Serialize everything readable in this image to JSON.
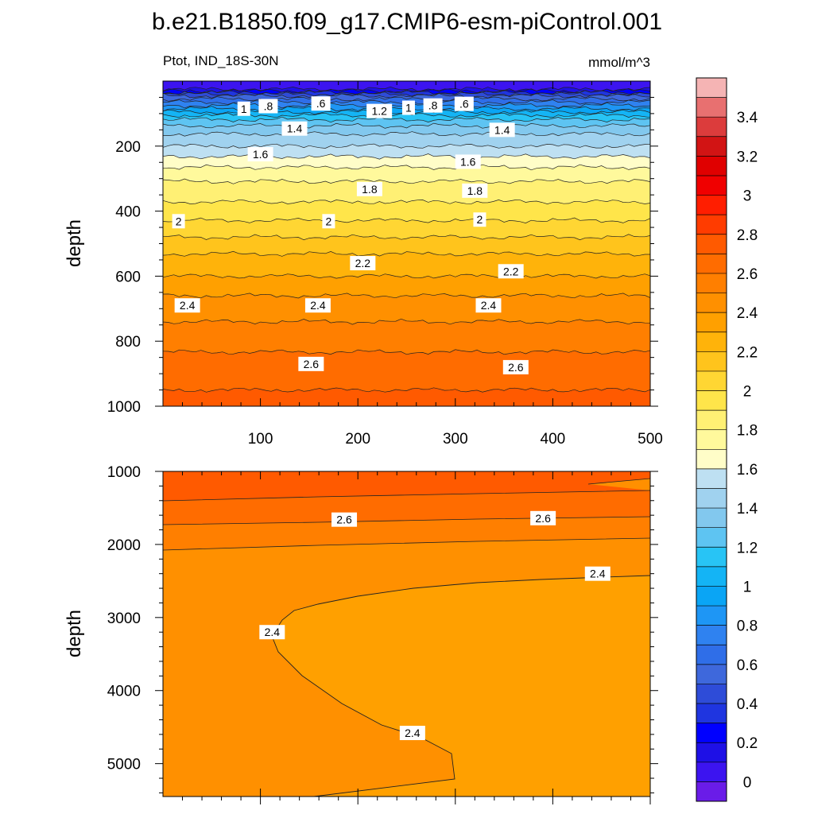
{
  "figure": {
    "title": "b.e21.B1850.f09_g17.CMIP6-esm-piControl.001",
    "variable_label": "Ptot, IND_18S-30N",
    "units_label": "mmol/m^3"
  },
  "chart_data": [
    {
      "type": "heatmap",
      "panel": "upper",
      "ylabel": "depth",
      "xlabel": "",
      "xlim": [
        0,
        500
      ],
      "ylim": [
        1000,
        0
      ],
      "x_ticks": [
        "100",
        "200",
        "300",
        "400",
        "500"
      ],
      "y_ticks": [
        "200",
        "400",
        "600",
        "800",
        "1000"
      ],
      "profile_depth": [
        0,
        25,
        45,
        65,
        85,
        105,
        125,
        150,
        175,
        200,
        225,
        250,
        280,
        320,
        360,
        400,
        440,
        480,
        520,
        560,
        600,
        640,
        680,
        720,
        760,
        800,
        850,
        900,
        950,
        1000
      ],
      "profile_value": [
        0.05,
        0.1,
        0.5,
        0.7,
        0.9,
        1.1,
        1.25,
        1.35,
        1.45,
        1.5,
        1.58,
        1.65,
        1.75,
        1.82,
        1.88,
        1.95,
        2.02,
        2.1,
        2.18,
        2.25,
        2.3,
        2.37,
        2.43,
        2.48,
        2.52,
        2.56,
        2.62,
        2.66,
        2.7,
        2.75
      ],
      "contour_labels": [
        {
          "text": "1",
          "x": 83,
          "y": 85
        },
        {
          "text": ".8",
          "x": 108,
          "y": 77
        },
        {
          "text": ".6",
          "x": 162,
          "y": 69
        },
        {
          "text": "1.2",
          "x": 222,
          "y": 92
        },
        {
          "text": "1",
          "x": 252,
          "y": 82
        },
        {
          "text": ".8",
          "x": 277,
          "y": 75
        },
        {
          "text": ".6",
          "x": 309,
          "y": 70
        },
        {
          "text": "1.4",
          "x": 135,
          "y": 146
        },
        {
          "text": "1.4",
          "x": 348,
          "y": 150
        },
        {
          "text": "1.6",
          "x": 100,
          "y": 225
        },
        {
          "text": "1.6",
          "x": 313,
          "y": 248
        },
        {
          "text": "1.8",
          "x": 212,
          "y": 332
        },
        {
          "text": "1.8",
          "x": 320,
          "y": 337
        },
        {
          "text": "2",
          "x": 16,
          "y": 431
        },
        {
          "text": "2",
          "x": 170,
          "y": 431
        },
        {
          "text": "2",
          "x": 325,
          "y": 426
        },
        {
          "text": "2.2",
          "x": 205,
          "y": 560
        },
        {
          "text": "2.2",
          "x": 357,
          "y": 585
        },
        {
          "text": "2.4",
          "x": 25,
          "y": 690
        },
        {
          "text": "2.4",
          "x": 159,
          "y": 690
        },
        {
          "text": "2.4",
          "x": 334,
          "y": 690
        },
        {
          "text": "2.6",
          "x": 152,
          "y": 870
        },
        {
          "text": "2.6",
          "x": 362,
          "y": 880
        }
      ]
    },
    {
      "type": "heatmap",
      "panel": "lower",
      "ylabel": "depth",
      "xlabel": "",
      "xlim": [
        0,
        500
      ],
      "ylim": [
        5450,
        1000
      ],
      "x_ticks": [],
      "y_ticks": [
        "1000",
        "2000",
        "3000",
        "4000",
        "5000"
      ],
      "contour_labels": [
        {
          "text": "2.6",
          "x": 186,
          "y": 1660
        },
        {
          "text": "2.6",
          "x": 390,
          "y": 1640
        },
        {
          "text": "2.4",
          "x": 446,
          "y": 2400
        },
        {
          "text": "2.4",
          "x": 112,
          "y": 3200
        },
        {
          "text": "2.4",
          "x": 256,
          "y": 4580
        }
      ]
    }
  ],
  "colorbar": {
    "levels": [
      0,
      0.1,
      0.2,
      0.3,
      0.4,
      0.5,
      0.6,
      0.7,
      0.8,
      0.9,
      1,
      1.1,
      1.2,
      1.3,
      1.4,
      1.5,
      1.6,
      1.7,
      1.8,
      1.9,
      2,
      2.1,
      2.2,
      2.3,
      2.4,
      2.5,
      2.6,
      2.7,
      2.8,
      2.9,
      3,
      3.1,
      3.2,
      3.3,
      3.4,
      3.5
    ],
    "colors": [
      "#6a1ce8",
      "#3c14f0",
      "#1e10e6",
      "#0000ff",
      "#1f35e0",
      "#2e4cd8",
      "#3e68dc",
      "#2f6ee8",
      "#2f82f0",
      "#1e96f5",
      "#0aa5f5",
      "#14b4f5",
      "#28c4f5",
      "#5ec4f2",
      "#82c8ee",
      "#a0d2ef",
      "#bee0f2",
      "#fffdc8",
      "#fff99c",
      "#fff074",
      "#ffe54a",
      "#ffd633",
      "#ffc41c",
      "#ffb30a",
      "#ffa000",
      "#ff9000",
      "#ff7f00",
      "#ff6c00",
      "#ff5a00",
      "#ff3c00",
      "#ff1e00",
      "#f00000",
      "#e00000",
      "#d21414",
      "#dc3c3c",
      "#e87070",
      "#f5b4b4"
    ],
    "tick_labels": [
      "0",
      "0.2",
      "0.4",
      "0.6",
      "0.8",
      "1",
      "1.2",
      "1.4",
      "1.6",
      "1.8",
      "2",
      "2.2",
      "2.4",
      "2.6",
      "2.8",
      "3",
      "3.2",
      "3.4"
    ]
  }
}
